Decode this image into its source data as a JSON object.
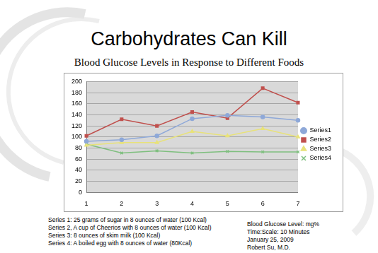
{
  "chart_data": {
    "type": "line",
    "title": "Carbohydrates Can Kill",
    "subtitle": "Blood Glucose Levels in Response to Different Foods",
    "categories": [
      "1",
      "2",
      "3",
      "4",
      "5",
      "6",
      "7"
    ],
    "series": [
      {
        "name": "Series1",
        "color": "#8ea8d8",
        "marker": "circle",
        "values": [
          92,
          95,
          102,
          133,
          139,
          136,
          130
        ]
      },
      {
        "name": "Series2",
        "color": "#c0504d",
        "marker": "rect",
        "values": [
          102,
          132,
          120,
          145,
          134,
          188,
          162
        ]
      },
      {
        "name": "Series3",
        "color": "#e8e27a",
        "marker": "triangle",
        "values": [
          85,
          90,
          90,
          110,
          102,
          115,
          100
        ]
      },
      {
        "name": "Series4",
        "color": "#7fbf7f",
        "marker": "crossRot",
        "values": [
          87,
          71,
          75,
          71,
          74,
          73,
          73
        ]
      }
    ],
    "ylim": [
      0,
      200
    ],
    "yticks": [
      0,
      20,
      40,
      60,
      80,
      100,
      120,
      140,
      160,
      180,
      200
    ],
    "grid": true,
    "legend": "right",
    "notes": [
      "Series 1: 25 grams of sugar in 8 ounces of water (100 Kcal)",
      "Series 2, A cup of Cheerios with 8 ounces of water (100 Kcal)",
      "Series 3: 8 ounces of skim milk (100 Kcal)",
      "Series 4: A boiled egg with 8 ounces of water (80Kcal)"
    ],
    "credits": [
      "Blood Glucose Level: mg%",
      "Time:Scale: 10 Minutes",
      "January 25, 2009",
      "Robert Su, M.D."
    ]
  }
}
